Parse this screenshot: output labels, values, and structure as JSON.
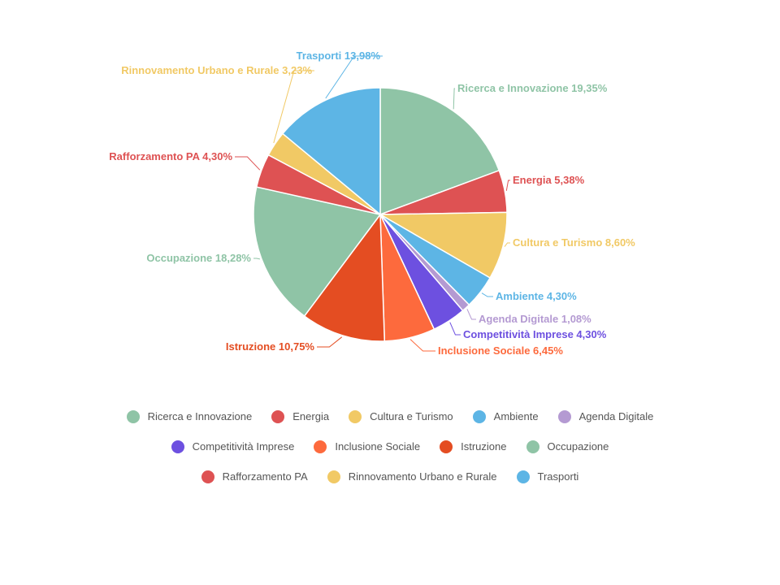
{
  "chart_data": {
    "type": "pie",
    "title": "",
    "legend_position": "bottom",
    "slices": [
      {
        "name": "Ricerca e Innovazione",
        "value": 19.35,
        "label": "Ricerca e Innovazione 19,35%",
        "color": "#8fc4a6"
      },
      {
        "name": "Energia",
        "value": 5.38,
        "label": "Energia 5,38%",
        "color": "#de5253"
      },
      {
        "name": "Cultura e Turismo",
        "value": 8.6,
        "label": "Cultura e Turismo 8,60%",
        "color": "#f1c965"
      },
      {
        "name": "Ambiente",
        "value": 4.3,
        "label": "Ambiente 4,30%",
        "color": "#5db5e5"
      },
      {
        "name": "Agenda Digitale",
        "value": 1.08,
        "label": "Agenda Digitale 1,08%",
        "color": "#b49ad2"
      },
      {
        "name": "Competitività Imprese",
        "value": 4.3,
        "label": "Competitività Imprese 4,30%",
        "color": "#6d50e0"
      },
      {
        "name": "Inclusione Sociale",
        "value": 6.45,
        "label": "Inclusione Sociale 6,45%",
        "color": "#fd6a3d"
      },
      {
        "name": "Istruzione",
        "value": 10.75,
        "label": "Istruzione 10,75%",
        "color": "#e44d22"
      },
      {
        "name": "Occupazione",
        "value": 18.28,
        "label": "Occupazione 18,28%",
        "color": "#8fc4a6"
      },
      {
        "name": "Rafforzamento PA",
        "value": 4.3,
        "label": "Rafforzamento PA 4,30%",
        "color": "#de5253"
      },
      {
        "name": "Rinnovamento Urbano e Rurale",
        "value": 3.23,
        "label": "Rinnovamento Urbano e Rurale 3,23%",
        "color": "#f1c965"
      },
      {
        "name": "Trasporti",
        "value": 13.98,
        "label": "Trasporti 13,98%",
        "color": "#5db5e5"
      }
    ]
  }
}
